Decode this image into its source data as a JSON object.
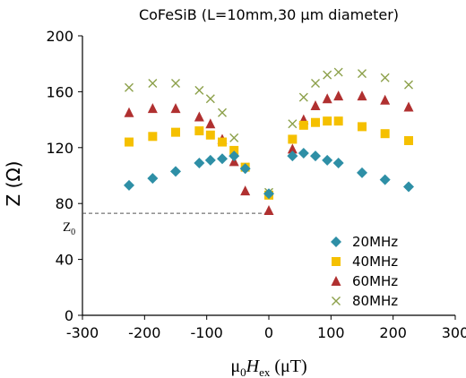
{
  "chart_data": {
    "type": "scatter",
    "title": "CoFeSiB (L=10mm,30 μm diameter)",
    "xlabel": {
      "mu": "μ",
      "sub0": "0",
      "H": "H",
      "sub_ex": "ex",
      "unit": " (μT)"
    },
    "ylabel": "Z (Ω)",
    "xlim": [
      -300,
      300
    ],
    "ylim": [
      0,
      200
    ],
    "xticks": [
      "-300",
      "-200",
      "-100",
      "0",
      "100",
      "200",
      "300"
    ],
    "yticks": [
      "0",
      "40",
      "80",
      "120",
      "160",
      "200"
    ],
    "grid": false,
    "legend_position": "bottom-right",
    "reference_line": {
      "label": "Z",
      "label_sub": "0",
      "y": 73,
      "x_start": -300,
      "x_end": 0
    },
    "series": [
      {
        "name": "20MHz",
        "marker": "diamond",
        "color": "#2e8fa6",
        "points": [
          [
            -225,
            93
          ],
          [
            -187,
            98
          ],
          [
            -150,
            103
          ],
          [
            -112,
            109
          ],
          [
            -94,
            111
          ],
          [
            -75,
            112
          ],
          [
            -56,
            114
          ],
          [
            -38,
            105
          ],
          [
            0,
            87
          ],
          [
            38,
            114
          ],
          [
            56,
            116
          ],
          [
            75,
            114
          ],
          [
            94,
            111
          ],
          [
            112,
            109
          ],
          [
            150,
            102
          ],
          [
            187,
            97
          ],
          [
            225,
            92
          ]
        ]
      },
      {
        "name": "40MHz",
        "marker": "square",
        "color": "#f5c000",
        "points": [
          [
            -225,
            124
          ],
          [
            -187,
            128
          ],
          [
            -150,
            131
          ],
          [
            -112,
            132
          ],
          [
            -94,
            129
          ],
          [
            -75,
            124
          ],
          [
            -56,
            118
          ],
          [
            -38,
            106
          ],
          [
            0,
            86
          ],
          [
            38,
            126
          ],
          [
            56,
            136
          ],
          [
            75,
            138
          ],
          [
            94,
            139
          ],
          [
            112,
            139
          ],
          [
            150,
            135
          ],
          [
            187,
            130
          ],
          [
            225,
            125
          ]
        ]
      },
      {
        "name": "60MHz",
        "marker": "triangle",
        "color": "#b03030",
        "points": [
          [
            -225,
            145
          ],
          [
            -187,
            148
          ],
          [
            -150,
            148
          ],
          [
            -112,
            142
          ],
          [
            -94,
            137
          ],
          [
            -75,
            126
          ],
          [
            -56,
            110
          ],
          [
            -38,
            89
          ],
          [
            0,
            75
          ],
          [
            38,
            119
          ],
          [
            56,
            140
          ],
          [
            75,
            150
          ],
          [
            94,
            155
          ],
          [
            112,
            157
          ],
          [
            150,
            157
          ],
          [
            187,
            154
          ],
          [
            225,
            149
          ]
        ]
      },
      {
        "name": "80MHz",
        "marker": "x",
        "color": "#8ca04a",
        "points": [
          [
            -225,
            163
          ],
          [
            -187,
            166
          ],
          [
            -150,
            166
          ],
          [
            -112,
            161
          ],
          [
            -94,
            155
          ],
          [
            -75,
            145
          ],
          [
            -56,
            127
          ],
          [
            -38,
            106
          ],
          [
            0,
            88
          ],
          [
            38,
            137
          ],
          [
            56,
            156
          ],
          [
            75,
            166
          ],
          [
            94,
            172
          ],
          [
            112,
            174
          ],
          [
            150,
            173
          ],
          [
            187,
            170
          ],
          [
            225,
            165
          ]
        ]
      }
    ]
  },
  "colors": {
    "axis": "#000000",
    "reference_line": "#555555",
    "marker_x_stroke": "#9a9a6a"
  }
}
